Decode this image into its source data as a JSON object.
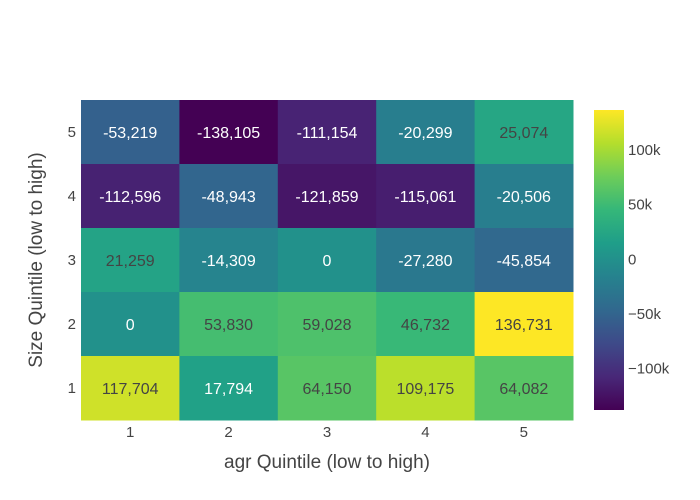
{
  "chart_data": {
    "type": "heatmap",
    "xlabel": "agr Quintile (low to high)",
    "ylabel": "Size Quintile (low to high)",
    "x_categories": [
      "1",
      "2",
      "3",
      "4",
      "5"
    ],
    "y_categories": [
      "1",
      "2",
      "3",
      "4",
      "5"
    ],
    "rows": [
      {
        "y": "5",
        "values": [
          -53219,
          -138105,
          -111154,
          -20299,
          25074
        ],
        "labels": [
          "-53,219",
          "-138,105",
          "-111,154",
          "-20,299",
          "25,074"
        ]
      },
      {
        "y": "4",
        "values": [
          -112596,
          -48943,
          -121859,
          -115061,
          -20506
        ],
        "labels": [
          "-112,596",
          "-48,943",
          "-121,859",
          "-115,061",
          "-20,506"
        ]
      },
      {
        "y": "3",
        "values": [
          21259,
          -14309,
          0,
          -27280,
          -45854
        ],
        "labels": [
          "21,259",
          "-14,309",
          "0",
          "-27,280",
          "-45,854"
        ]
      },
      {
        "y": "2",
        "values": [
          0,
          53830,
          59028,
          46732,
          136731
        ],
        "labels": [
          "0",
          "53,830",
          "59,028",
          "46,732",
          "136,731"
        ]
      },
      {
        "y": "1",
        "values": [
          117704,
          17794,
          64150,
          109175,
          64082
        ],
        "labels": [
          "117,704",
          "17,794",
          "64,150",
          "109,175",
          "64,082"
        ]
      }
    ],
    "colorscale": "viridis",
    "zmin": -138105,
    "zmax": 136731,
    "colorbar": {
      "ticks": [
        100000,
        50000,
        0,
        -50000,
        -100000
      ],
      "tick_labels": [
        "100k",
        "50k",
        "0",
        "−50k",
        "−100k"
      ]
    }
  }
}
